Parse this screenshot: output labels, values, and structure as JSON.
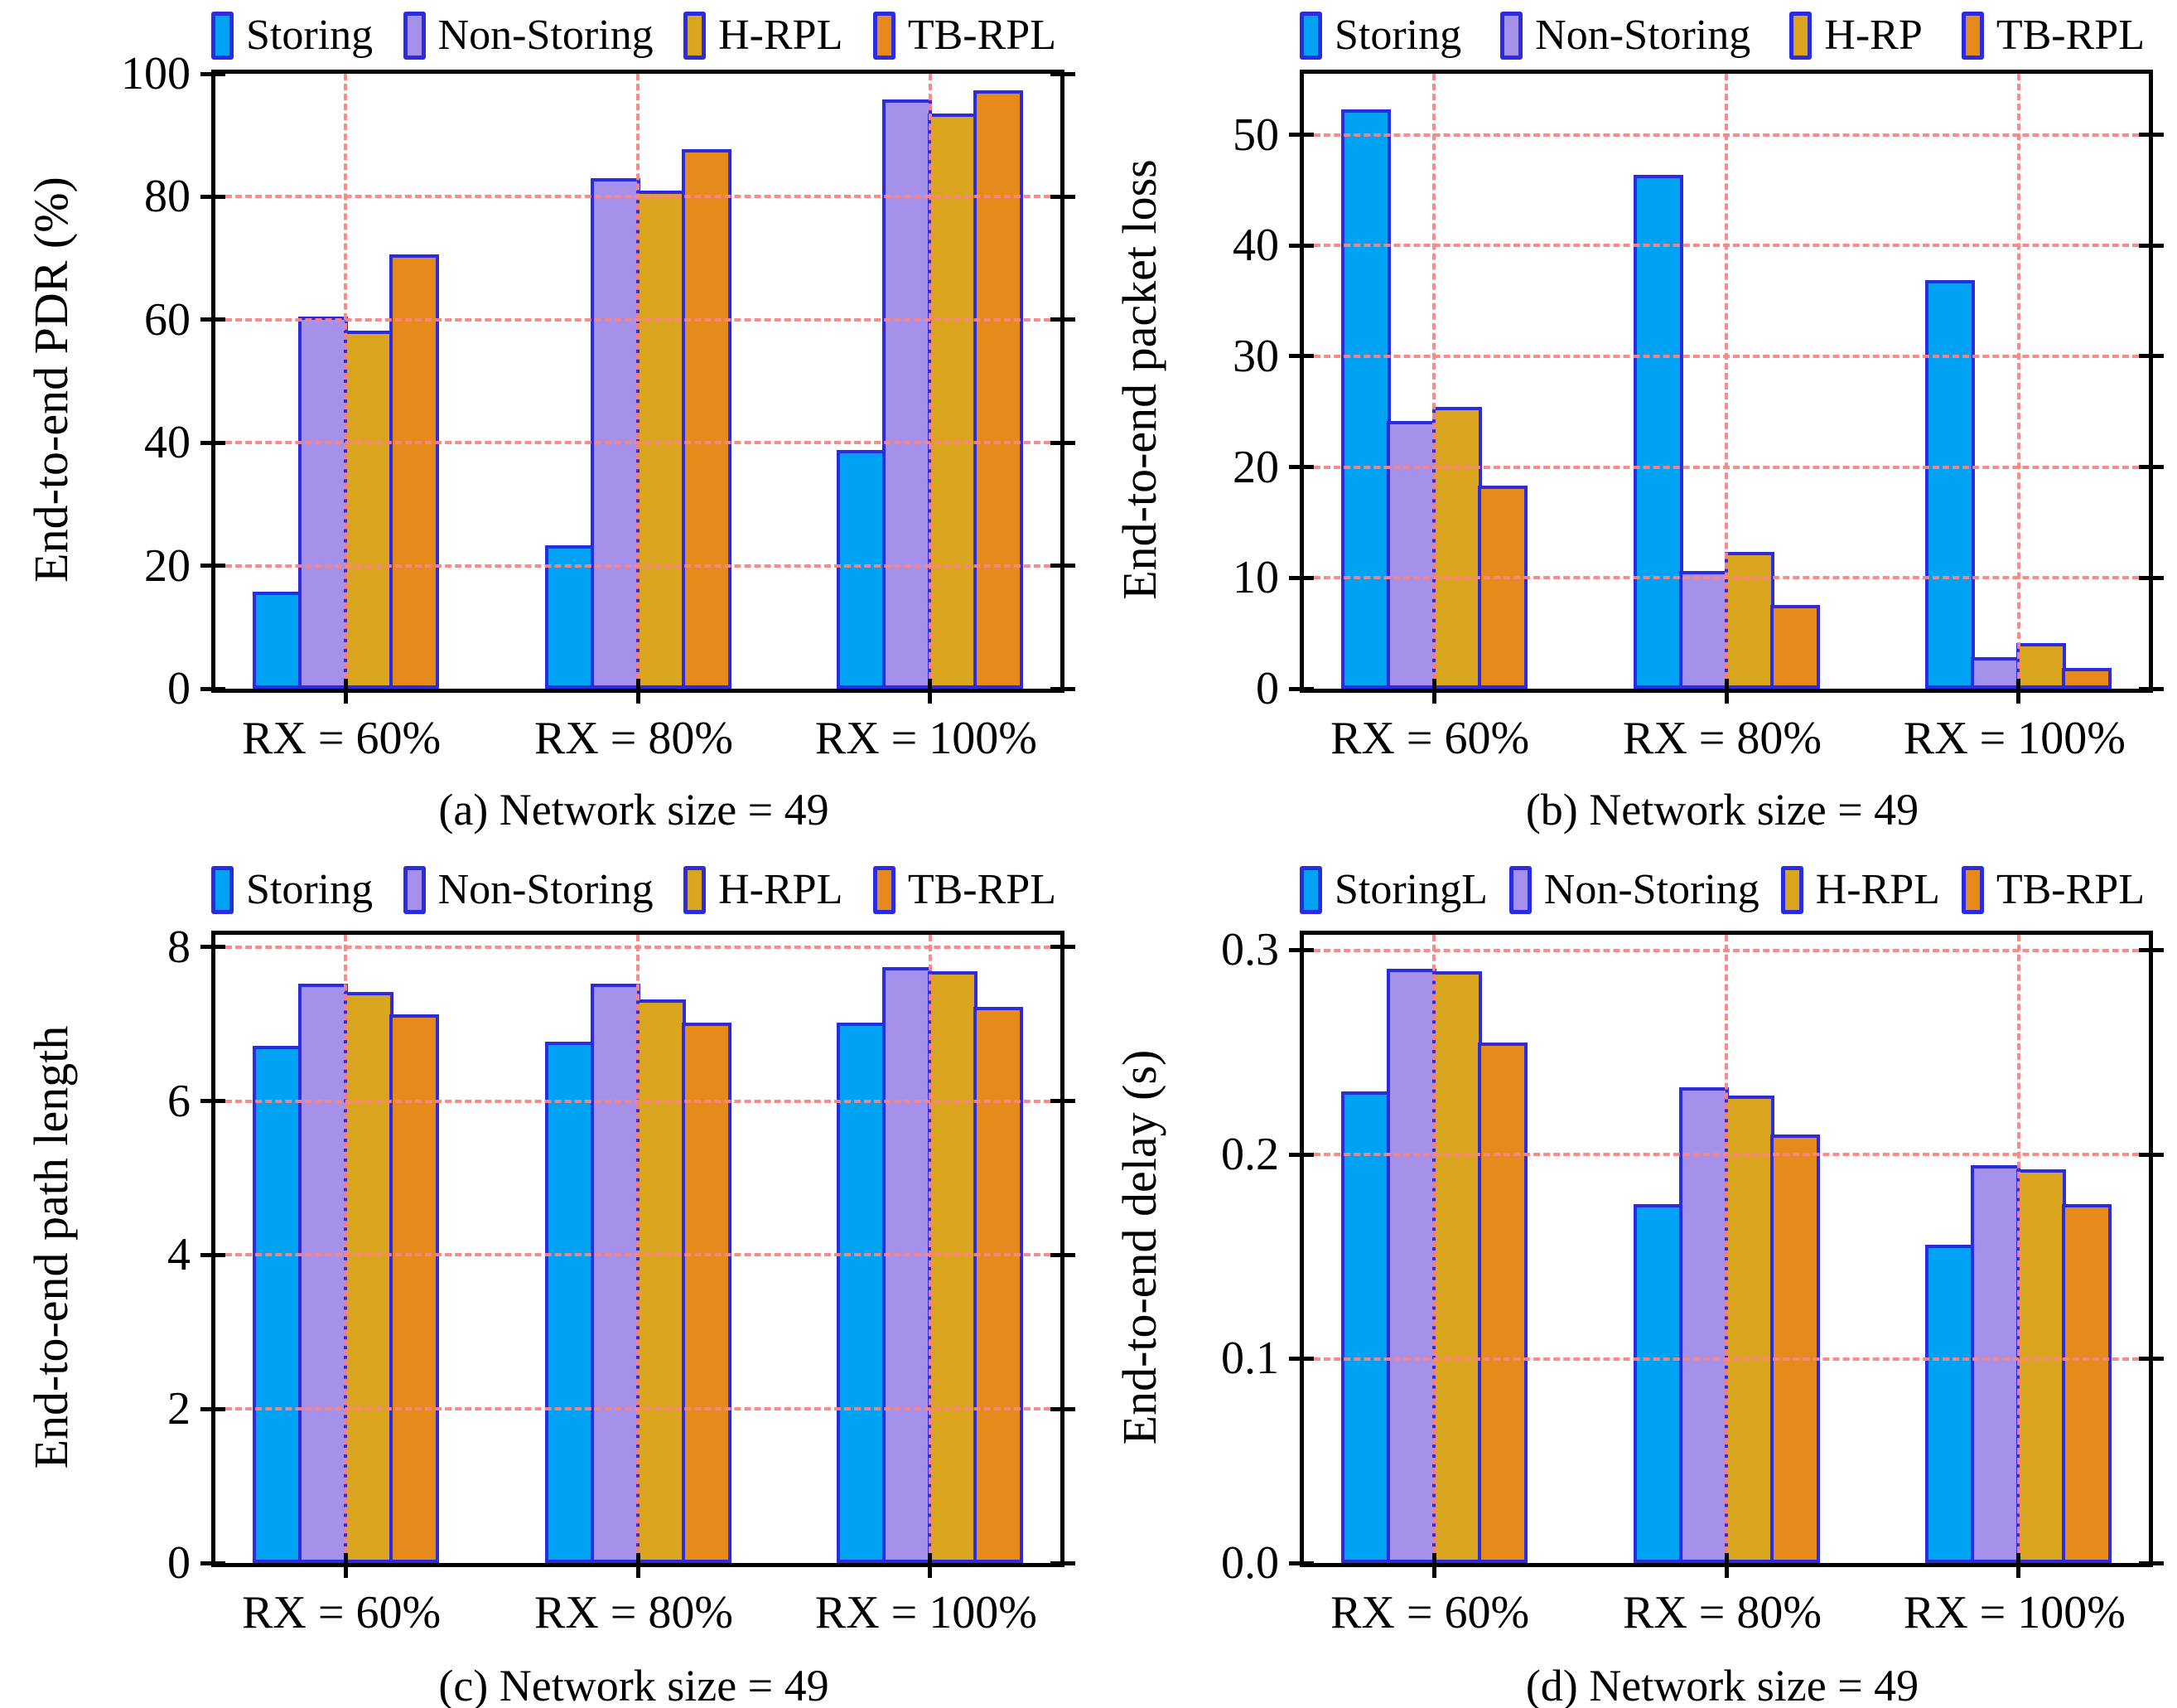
{
  "accent_colors": {
    "bar_border": "#2b2be0",
    "gridline": "#fa8585",
    "axis": "#000000",
    "background": "#ffffff"
  },
  "chart_data": [
    {
      "id": "a",
      "type": "bar",
      "caption": "(a) Network size = 49",
      "ylabel": "End-to-end PDR (%)",
      "categories": [
        "RX = 60%",
        "RX = 80%",
        "RX = 100%"
      ],
      "yticks": [
        "0",
        "20",
        "40",
        "60",
        "80",
        "100"
      ],
      "ylim": [
        0,
        100
      ],
      "grid": "on",
      "legend_position": "top",
      "series": [
        {
          "name": "Storing",
          "color": "#00a2f4",
          "values": [
            15.5,
            23.0,
            38.5
          ]
        },
        {
          "name": "Non-Storing",
          "color": "#a590ea",
          "values": [
            60.3,
            82.7,
            95.5
          ]
        },
        {
          "name": "H-RPL",
          "color": "#d9a41e",
          "values": [
            58.0,
            80.7,
            93.2
          ]
        },
        {
          "name": "TB-RPL",
          "color": "#e78a1c",
          "values": [
            70.3,
            87.5,
            97.0
          ]
        }
      ]
    },
    {
      "id": "b",
      "type": "bar",
      "caption": "(b) Network size = 49",
      "ylabel": "End-to-end packet loss",
      "categories": [
        "RX = 60%",
        "RX = 80%",
        "RX = 100%"
      ],
      "yticks": [
        "0",
        "10",
        "20",
        "30",
        "40",
        "50"
      ],
      "ylim": [
        0,
        55.5
      ],
      "grid": "on",
      "legend_position": "top",
      "series": [
        {
          "name": "Storing",
          "color": "#00a2f4",
          "values": [
            52.1,
            46.2,
            36.7
          ]
        },
        {
          "name": "Non-Storing",
          "color": "#a590ea",
          "values": [
            24.0,
            10.5,
            2.7
          ]
        },
        {
          "name": "H-RP",
          "color": "#d9a41e",
          "values": [
            25.3,
            12.2,
            4.0
          ]
        },
        {
          "name": "TB-RPL",
          "color": "#e78a1c",
          "values": [
            18.2,
            7.4,
            1.7
          ]
        }
      ]
    },
    {
      "id": "c",
      "type": "bar",
      "caption": "(c) Network size = 49",
      "ylabel": "End-to-end path length",
      "categories": [
        "RX = 60%",
        "RX = 80%",
        "RX = 100%"
      ],
      "yticks": [
        "0",
        "2",
        "4",
        "6",
        "8"
      ],
      "ylim": [
        0,
        8.16
      ],
      "grid": "on",
      "legend_position": "top",
      "series": [
        {
          "name": "Storing",
          "color": "#00a2f4",
          "values": [
            6.7,
            6.75,
            7.0
          ]
        },
        {
          "name": "Non-Storing",
          "color": "#a590ea",
          "values": [
            7.5,
            7.5,
            7.72
          ]
        },
        {
          "name": "H-RPL",
          "color": "#d9a41e",
          "values": [
            7.4,
            7.3,
            7.67
          ]
        },
        {
          "name": "TB-RPL",
          "color": "#e78a1c",
          "values": [
            7.1,
            7.0,
            7.2
          ]
        }
      ]
    },
    {
      "id": "d",
      "type": "bar",
      "caption": "(d) Network size = 49",
      "ylabel": "End-to-end delay (s)",
      "categories": [
        "RX = 60%",
        "RX = 80%",
        "RX = 100%"
      ],
      "yticks": [
        "0.0",
        "0.1",
        "0.2",
        "0.3"
      ],
      "ylim": [
        0,
        0.3075
      ],
      "grid": "on",
      "legend_position": "top",
      "series": [
        {
          "name": "StoringL",
          "color": "#00a2f4",
          "values": [
            0.23,
            0.175,
            0.155
          ]
        },
        {
          "name": "Non-Storing",
          "color": "#a590ea",
          "values": [
            0.29,
            0.232,
            0.194
          ]
        },
        {
          "name": "H-RPL",
          "color": "#d9a41e",
          "values": [
            0.289,
            0.228,
            0.192
          ]
        },
        {
          "name": "TB-RPL",
          "color": "#e78a1c",
          "values": [
            0.254,
            0.209,
            0.175
          ]
        }
      ]
    }
  ]
}
